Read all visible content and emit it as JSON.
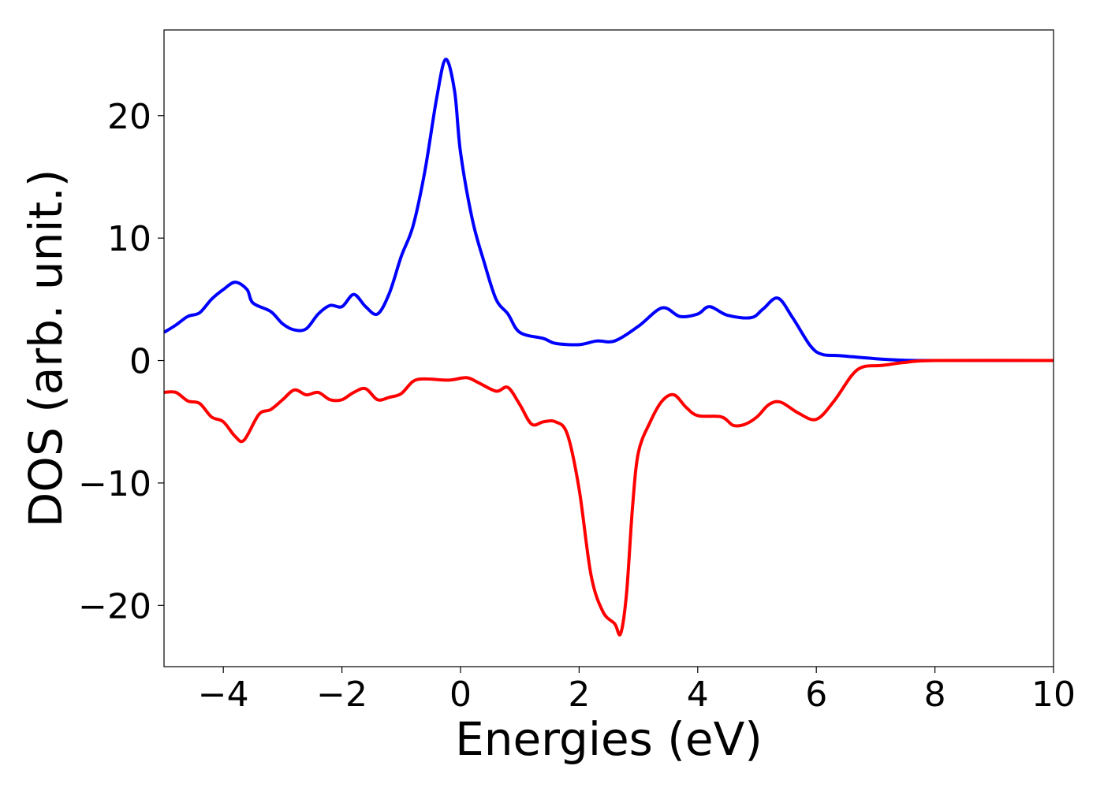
{
  "chart_data": {
    "type": "line",
    "title": "",
    "xlabel": "Energies (eV)",
    "ylabel": "DOS (arb. unit.)",
    "xlim": [
      -5,
      10
    ],
    "ylim": [
      -25,
      27
    ],
    "grid": false,
    "xticks": [
      -4,
      -2,
      0,
      2,
      4,
      6,
      8,
      10
    ],
    "xtick_labels": [
      "−4",
      "−2",
      "0",
      "2",
      "4",
      "6",
      "8",
      "10"
    ],
    "yticks": [
      -20,
      -10,
      0,
      10,
      20
    ],
    "ytick_labels": [
      "−20",
      "−10",
      "0",
      "10",
      "20"
    ],
    "series": [
      {
        "color": "#0000ff",
        "points": [
          [
            -5.0,
            2.3
          ],
          [
            -4.8,
            2.9
          ],
          [
            -4.6,
            3.6
          ],
          [
            -4.4,
            3.9
          ],
          [
            -4.2,
            5.0
          ],
          [
            -4.0,
            5.8
          ],
          [
            -3.8,
            6.4
          ],
          [
            -3.6,
            5.8
          ],
          [
            -3.5,
            4.7
          ],
          [
            -3.2,
            4.0
          ],
          [
            -3.0,
            3.0
          ],
          [
            -2.8,
            2.5
          ],
          [
            -2.6,
            2.6
          ],
          [
            -2.4,
            3.8
          ],
          [
            -2.2,
            4.5
          ],
          [
            -2.0,
            4.4
          ],
          [
            -1.8,
            5.4
          ],
          [
            -1.6,
            4.4
          ],
          [
            -1.4,
            3.8
          ],
          [
            -1.2,
            5.5
          ],
          [
            -1.0,
            8.5
          ],
          [
            -0.8,
            11.0
          ],
          [
            -0.6,
            15.5
          ],
          [
            -0.4,
            21.5
          ],
          [
            -0.25,
            24.6
          ],
          [
            -0.1,
            22.0
          ],
          [
            0.0,
            17.0
          ],
          [
            0.2,
            11.5
          ],
          [
            0.4,
            8.0
          ],
          [
            0.6,
            5.0
          ],
          [
            0.8,
            3.8
          ],
          [
            1.0,
            2.3
          ],
          [
            1.4,
            1.8
          ],
          [
            1.6,
            1.4
          ],
          [
            2.0,
            1.3
          ],
          [
            2.3,
            1.6
          ],
          [
            2.6,
            1.6
          ],
          [
            3.0,
            2.8
          ],
          [
            3.4,
            4.3
          ],
          [
            3.7,
            3.6
          ],
          [
            4.0,
            3.8
          ],
          [
            4.2,
            4.4
          ],
          [
            4.5,
            3.7
          ],
          [
            4.9,
            3.5
          ],
          [
            5.1,
            4.2
          ],
          [
            5.35,
            5.1
          ],
          [
            5.6,
            3.5
          ],
          [
            5.9,
            1.2
          ],
          [
            6.1,
            0.5
          ],
          [
            6.4,
            0.4
          ],
          [
            7.0,
            0.15
          ],
          [
            7.5,
            0.02
          ],
          [
            8.0,
            0.0
          ],
          [
            10.0,
            0.0
          ]
        ]
      },
      {
        "color": "#ff0000",
        "points": [
          [
            -5.0,
            -2.6
          ],
          [
            -4.8,
            -2.6
          ],
          [
            -4.6,
            -3.3
          ],
          [
            -4.4,
            -3.5
          ],
          [
            -4.2,
            -4.6
          ],
          [
            -4.0,
            -5.0
          ],
          [
            -3.8,
            -6.2
          ],
          [
            -3.65,
            -6.5
          ],
          [
            -3.4,
            -4.4
          ],
          [
            -3.2,
            -4.0
          ],
          [
            -3.0,
            -3.2
          ],
          [
            -2.8,
            -2.4
          ],
          [
            -2.6,
            -2.8
          ],
          [
            -2.4,
            -2.6
          ],
          [
            -2.2,
            -3.2
          ],
          [
            -2.0,
            -3.2
          ],
          [
            -1.8,
            -2.6
          ],
          [
            -1.6,
            -2.3
          ],
          [
            -1.4,
            -3.2
          ],
          [
            -1.2,
            -3.0
          ],
          [
            -1.0,
            -2.7
          ],
          [
            -0.8,
            -1.7
          ],
          [
            -0.6,
            -1.5
          ],
          [
            -0.2,
            -1.6
          ],
          [
            0.1,
            -1.4
          ],
          [
            0.3,
            -1.8
          ],
          [
            0.6,
            -2.5
          ],
          [
            0.8,
            -2.2
          ],
          [
            1.0,
            -3.6
          ],
          [
            1.2,
            -5.2
          ],
          [
            1.4,
            -5.0
          ],
          [
            1.6,
            -5.0
          ],
          [
            1.8,
            -6.0
          ],
          [
            2.0,
            -10.5
          ],
          [
            2.2,
            -17.5
          ],
          [
            2.4,
            -20.5
          ],
          [
            2.6,
            -21.5
          ],
          [
            2.7,
            -22.3
          ],
          [
            2.8,
            -19.0
          ],
          [
            2.9,
            -12.0
          ],
          [
            3.0,
            -7.5
          ],
          [
            3.2,
            -5.0
          ],
          [
            3.4,
            -3.3
          ],
          [
            3.6,
            -2.8
          ],
          [
            3.8,
            -3.8
          ],
          [
            4.0,
            -4.5
          ],
          [
            4.4,
            -4.6
          ],
          [
            4.6,
            -5.3
          ],
          [
            4.8,
            -5.2
          ],
          [
            5.0,
            -4.6
          ],
          [
            5.2,
            -3.6
          ],
          [
            5.4,
            -3.4
          ],
          [
            5.7,
            -4.3
          ],
          [
            6.0,
            -4.8
          ],
          [
            6.3,
            -3.3
          ],
          [
            6.6,
            -1.2
          ],
          [
            6.8,
            -0.5
          ],
          [
            7.1,
            -0.4
          ],
          [
            7.5,
            -0.15
          ],
          [
            8.0,
            0.0
          ],
          [
            10.0,
            0.0
          ]
        ]
      }
    ]
  }
}
